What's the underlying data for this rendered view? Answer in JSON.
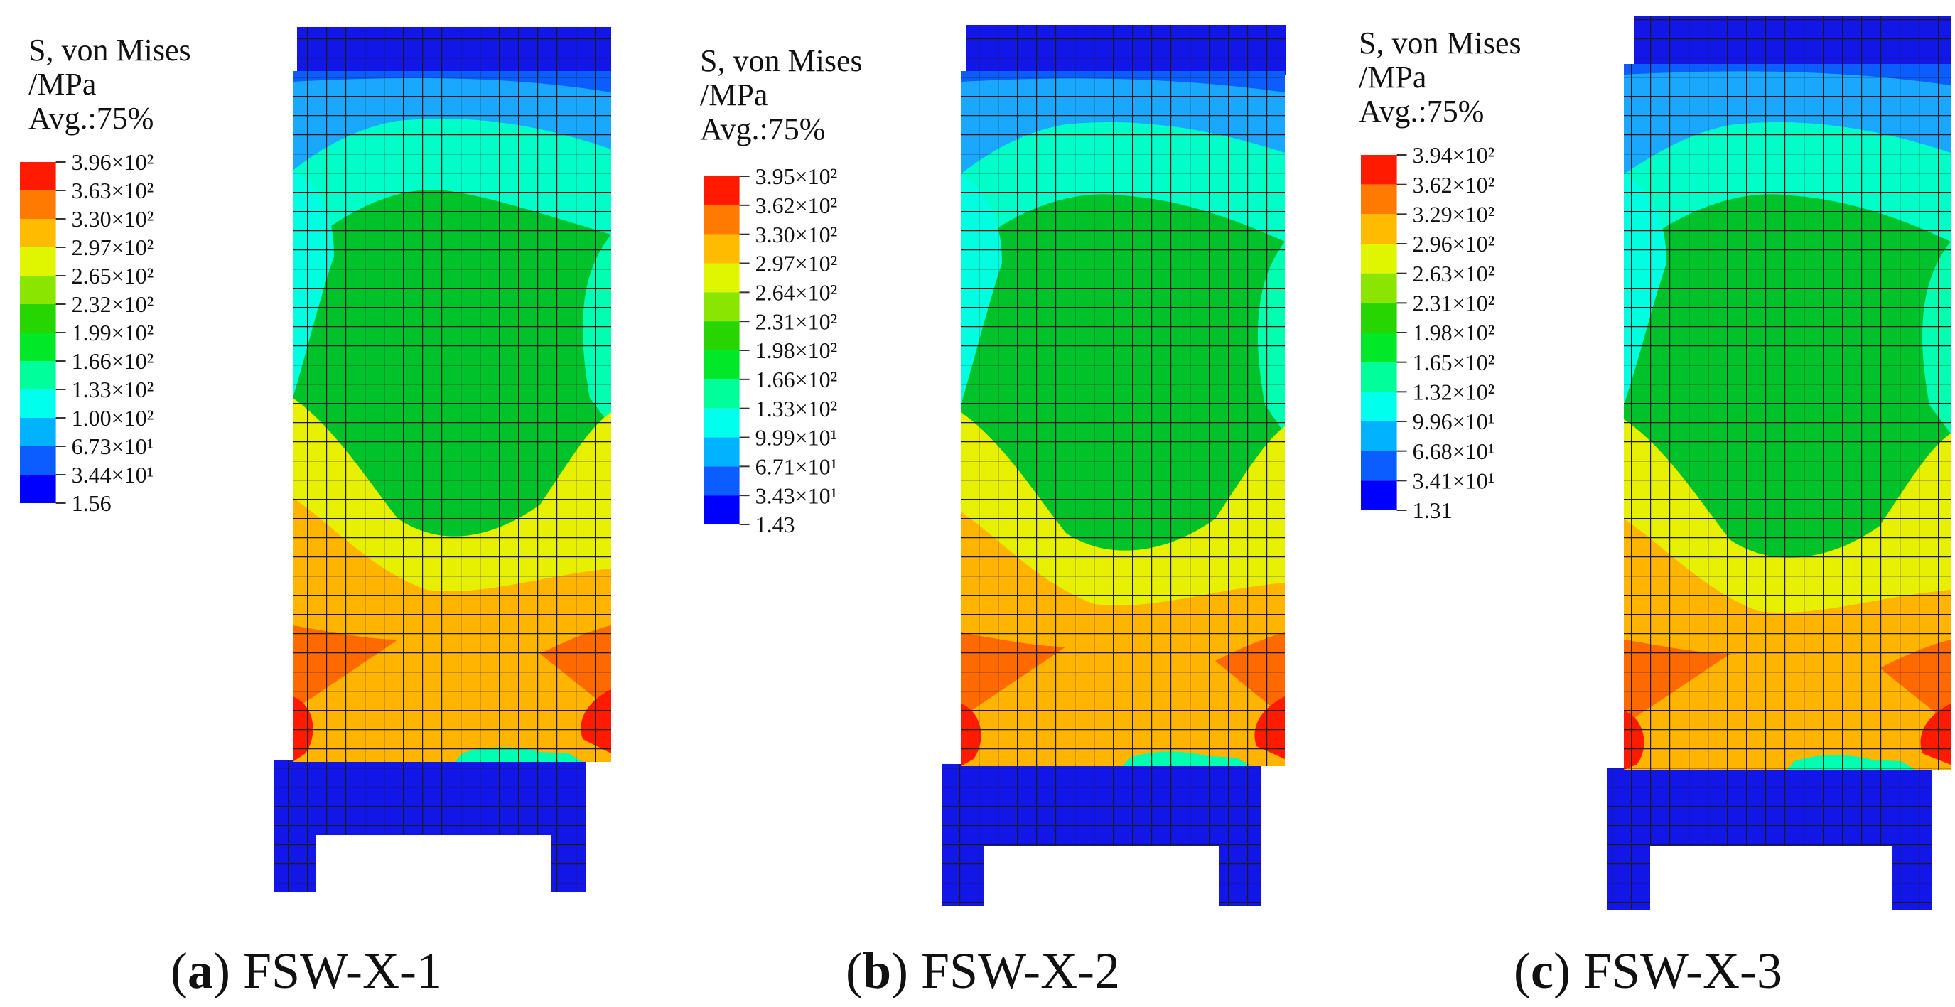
{
  "colormap": [
    "#0000ff",
    "#0b5dff",
    "#00b2ff",
    "#00ffec",
    "#00ff9a",
    "#00e828",
    "#27d600",
    "#8ae600",
    "#e0f500",
    "#ffbb00",
    "#ff7a00",
    "#ff1a00"
  ],
  "mesh_line_color": "#1a1a1a",
  "panels": [
    {
      "legend": {
        "title1": "S, von Mises",
        "title2": "/MPa",
        "title3": "Avg.:75%",
        "ticks": [
          "3.96×10²",
          "3.63×10²",
          "3.30×10²",
          "2.97×10²",
          "2.65×10²",
          "2.32×10²",
          "1.99×10²",
          "1.66×10²",
          "1.33×10²",
          "1.00×10²",
          "6.73×10¹",
          "3.44×10¹",
          "1.56"
        ]
      },
      "caption": {
        "letter": "a",
        "rest": " FSW-X-1",
        "open": "("
      }
    },
    {
      "legend": {
        "title1": "S, von Mises",
        "title2": "/MPa",
        "title3": "Avg.:75%",
        "ticks": [
          "3.95×10²",
          "3.62×10²",
          "3.30×10²",
          "2.97×10²",
          "2.64×10²",
          "2.31×10²",
          "1.98×10²",
          "1.66×10²",
          "1.33×10²",
          "9.99×10¹",
          "6.71×10¹",
          "3.43×10¹",
          "1.43"
        ]
      },
      "caption": {
        "letter": "b",
        "rest": " FSW-X-2",
        "open": "("
      }
    },
    {
      "legend": {
        "title1": "S, von Mises",
        "title2": "/MPa",
        "title3": "Avg.:75%",
        "ticks": [
          "3.94×10²",
          "3.62×10²",
          "3.29×10²",
          "2.96×10²",
          "2.63×10²",
          "2.31×10²",
          "1.98×10²",
          "1.65×10²",
          "1.32×10²",
          "9.96×10¹",
          "6.68×10¹",
          "3.41×10¹",
          "1.31"
        ]
      },
      "caption": {
        "letter": "c",
        "rest": " FSW-X-3",
        "open": "("
      }
    }
  ]
}
